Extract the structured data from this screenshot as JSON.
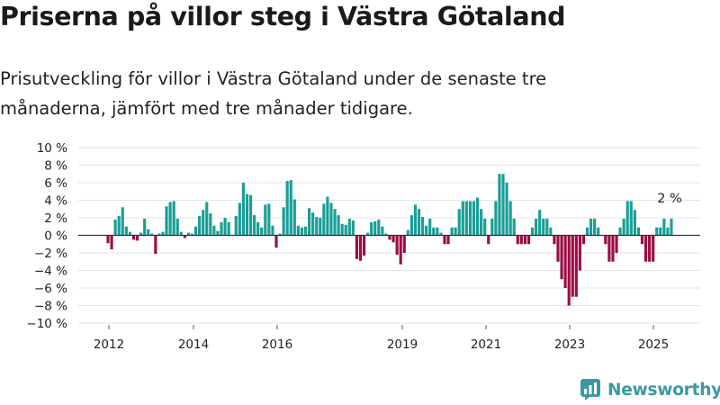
{
  "title": "Priserna på villor steg i Västra Götaland",
  "subtitle": "Prisutveckling för villor i Västra Götaland under de senaste tre månaderna, jämfört med tre månader tidigare.",
  "brand": "Newsworthy",
  "colors": {
    "positive": "#1a9e96",
    "negative": "#9b0d46",
    "axis": "#333333",
    "grid": "#e3e3e3"
  },
  "chart_data": {
    "type": "bar",
    "ylim": [
      -10,
      10
    ],
    "y_ticks": [
      10,
      8,
      6,
      4,
      2,
      0,
      -2,
      -4,
      -6,
      -8,
      -10
    ],
    "y_tick_labels": [
      "10 %",
      "8 %",
      "6 %",
      "4 %",
      "2 %",
      "0 %",
      "−2 %",
      "−4 %",
      "−6 %",
      "−8 %",
      "−10 %"
    ],
    "x_tick_labels": [
      "2012",
      "2014",
      "2016",
      "2019",
      "2021",
      "2023",
      "2025"
    ],
    "grid": true,
    "last_value_label": "2 %",
    "series": [
      {
        "values": [
          -0.9,
          -1.6,
          1.8,
          2.2,
          3.2,
          1.0,
          0.4,
          -0.5,
          -0.6,
          0.3,
          1.9,
          0.7,
          0.2,
          -2.1,
          0.2,
          0.4,
          3.3,
          3.8,
          3.9,
          1.9,
          0.4,
          -0.3,
          0.3,
          0.2,
          1.0,
          2.2,
          2.9,
          3.8,
          2.5,
          1.1,
          0.5,
          1.5,
          2.0,
          1.5,
          0,
          2.2,
          3.7,
          6.0,
          4.7,
          4.6,
          2.3,
          1.5,
          0.9,
          3.5,
          3.6,
          1.1,
          -1.4,
          0.2,
          3.2,
          6.2,
          6.3,
          4.1,
          1.1,
          0.9,
          1.0,
          3.1,
          2.6,
          2.1,
          2.0,
          3.6,
          4.4,
          3.7,
          3.0,
          2.3,
          1.3,
          1.2,
          1.9,
          1.7,
          -2.7,
          -2.9,
          -2.3,
          0.3,
          1.5,
          1.6,
          1.8,
          1.0,
          0.2,
          -0.5,
          -0.8,
          -2.2,
          -3.3,
          -2.0,
          0.6,
          2.3,
          3.5,
          3.0,
          2.1,
          1.1,
          1.9,
          0.9,
          0.9,
          0.3,
          -1.0,
          -1.0,
          0.9,
          0.9,
          3.0,
          3.9,
          3.9,
          3.9,
          3.9,
          4.3,
          3.0,
          1.9,
          -1.0,
          1.9,
          3.9,
          7.0,
          7.0,
          6.0,
          3.9,
          1.9,
          -1.0,
          -1.0,
          -1.0,
          -1.0,
          0.9,
          1.9,
          2.9,
          1.9,
          1.9,
          0.9,
          -1.0,
          -3.0,
          -5.0,
          -6.0,
          -8.0,
          -7.0,
          -7.0,
          -4.0,
          -1.0,
          0.9,
          1.9,
          1.9,
          0.9,
          0,
          -1.0,
          -3.0,
          -3.0,
          -2.0,
          0.9,
          1.9,
          3.9,
          3.9,
          2.9,
          0.9,
          -1.0,
          -3.0,
          -3.0,
          -3.0,
          0.9,
          0.9,
          1.9,
          0.9,
          1.9
        ]
      }
    ]
  }
}
